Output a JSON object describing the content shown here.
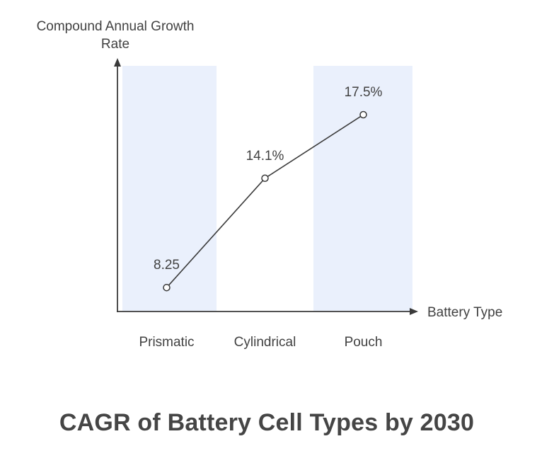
{
  "title": "CAGR of Battery Cell Types by 2030",
  "axes": {
    "y_label_line1": "Compound Annual Growth",
    "y_label_line2": "Rate",
    "x_label": "Battery Type"
  },
  "colors": {
    "text": "#414141",
    "line": "#3a3a3a",
    "band": "#EAF0FC",
    "marker_fill": "#ffffff"
  },
  "chart_data": {
    "type": "line",
    "title": "CAGR of Battery Cell Types by 2030",
    "xlabel": "Battery Type",
    "ylabel": "Compound Annual Growth Rate",
    "categories": [
      "Prismatic",
      "Cylindrical",
      "Pouch"
    ],
    "values": [
      8.25,
      14.1,
      17.5
    ],
    "labels": [
      "8.25",
      "14.1%",
      "17.5%"
    ],
    "highlighted_bands": [
      0,
      2
    ],
    "grid": false,
    "legend": false,
    "marker": "open-circle",
    "axis_style": "arrow"
  }
}
